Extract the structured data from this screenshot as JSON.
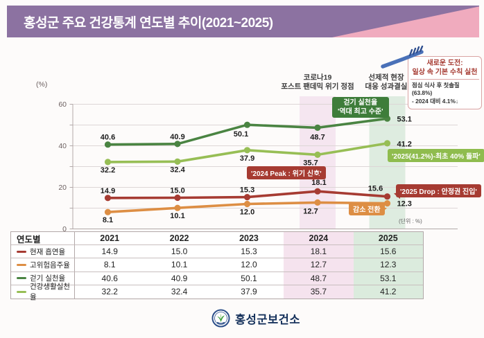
{
  "header": {
    "title": "홍성군 주요 건강통계 연도별 추이(2021~2025)"
  },
  "chart_data": {
    "type": "line",
    "title": "홍성군 주요 건강통계 연도별 추이(2021~2025)",
    "ylabel": "(%)",
    "unit_note": "(단위 : %)",
    "ylim": [
      0,
      60
    ],
    "y_tick_labels": [
      0,
      20,
      40,
      60
    ],
    "grid_step": 10,
    "grid": true,
    "legend_position": "table-left",
    "categories": [
      "2021",
      "2022",
      "2023",
      "2024",
      "2025"
    ],
    "series": [
      {
        "name": "현재 흡연율",
        "color": "#A63B32",
        "values": [
          14.9,
          15.0,
          15.3,
          18.1,
          15.6
        ]
      },
      {
        "name": "고위험음주율",
        "color": "#DD8E44",
        "values": [
          8.1,
          10.1,
          12.0,
          12.7,
          12.3
        ]
      },
      {
        "name": "걷기 실천율",
        "color": "#4A8442",
        "values": [
          40.6,
          40.9,
          50.1,
          48.7,
          53.1
        ]
      },
      {
        "name": "건강생활실천율",
        "color": "#97BE55",
        "values": [
          32.2,
          32.4,
          37.9,
          35.7,
          41.2
        ]
      }
    ],
    "column_events": [
      {
        "category": "2024",
        "label_line1": "코로나19",
        "label_line2": "포스트 팬데믹 위기 정점",
        "band_color": "#F5E6F0"
      },
      {
        "category": "2025",
        "label_line1": "선제적 현장",
        "label_line2": "대응 성과결실",
        "band_color": "#DEECE0"
      }
    ],
    "callouts": {
      "walking_record": {
        "line1": "걷기 실천율",
        "line2": "'역대 최고 수준'",
        "color": "#3E7D3A"
      },
      "peak_2024": {
        "text": "'2024 Peak : 위기 신호'",
        "color": "#A63B32"
      },
      "breakthrough_2025": {
        "text": "'2025(41.2%)-최초 40% 돌파'",
        "color": "#8FBC4E"
      },
      "drop_2025": {
        "text": "'2025 Drop : 안정권 진입'",
        "color": "#A63B32"
      },
      "decline_shift": {
        "text": "감소 전환",
        "color": "#DD8E44"
      }
    }
  },
  "note_box": {
    "title_line1": "새로운 도전:",
    "title_line2": "일상 속 기본 수칙 실천",
    "body_line1": "점심 식사 후 칫솔질(63.8%)",
    "body_line2": "- 2024 대비 4.1%↓"
  },
  "table": {
    "row_header": "연도별"
  },
  "footer": {
    "org_name": "홍성군보건소"
  },
  "colors": {
    "banner_purple": "#8C72A1",
    "banner_pink": "#F0ABBE"
  }
}
